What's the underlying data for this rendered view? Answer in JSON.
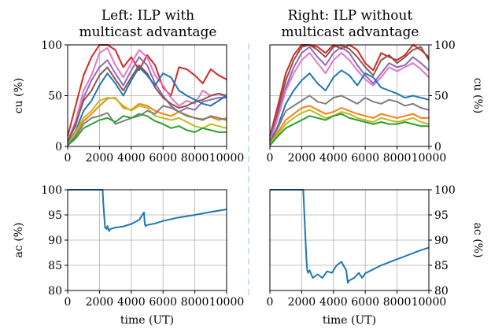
{
  "titles": {
    "left": [
      "Left: ILP with",
      "multicast advantage"
    ],
    "right": [
      "Right: ILP without",
      "multicast advantage"
    ]
  },
  "colors": {
    "separator": "#add8e6",
    "series": [
      "#1f77b4",
      "#d62728",
      "#9467bd",
      "#8c564b",
      "#e377c2",
      "#7f7f7f",
      "#ff7f0e",
      "#2ca02c",
      "#bcbd22"
    ]
  },
  "chart_data": [
    {
      "id": "cu-left",
      "type": "line",
      "ylabel": "cu (%)",
      "xlabel": "",
      "xlim": [
        0,
        10000
      ],
      "ylim": [
        0,
        100
      ],
      "xticks": [
        0,
        2000,
        4000,
        6000,
        8000,
        10000
      ],
      "yticks": [
        0,
        50,
        100
      ],
      "grid": true,
      "series": [
        {
          "color": "#d62728",
          "x": [
            0,
            500,
            1000,
            1500,
            2000,
            2500,
            3000,
            3500,
            4000,
            4500,
            5000,
            5500,
            6000,
            6500,
            7000,
            7500,
            8000,
            8500,
            9000,
            9500,
            10000
          ],
          "y": [
            10,
            40,
            70,
            88,
            100,
            100,
            95,
            78,
            88,
            75,
            90,
            80,
            58,
            50,
            78,
            76,
            70,
            62,
            76,
            70,
            66
          ]
        },
        {
          "color": "#e377c2",
          "x": [
            0,
            500,
            1000,
            1500,
            2000,
            2500,
            3000,
            3500,
            4000,
            4500,
            5000,
            5500,
            6000,
            6500,
            7000,
            7500,
            8000,
            8500,
            9000,
            9500,
            10000
          ],
          "y": [
            5,
            25,
            55,
            70,
            92,
            97,
            80,
            68,
            82,
            95,
            88,
            70,
            60,
            48,
            40,
            45,
            42,
            55,
            50,
            52,
            48
          ]
        },
        {
          "color": "#9467bd",
          "x": [
            0,
            500,
            1000,
            1500,
            2000,
            2500,
            3000,
            3500,
            4000,
            4500,
            5000,
            5500,
            6000,
            6500,
            7000,
            7500,
            8000,
            8500,
            9000,
            9500,
            10000
          ],
          "y": [
            5,
            20,
            48,
            65,
            78,
            85,
            72,
            60,
            75,
            88,
            80,
            62,
            50,
            40,
            34,
            38,
            36,
            44,
            46,
            48,
            48
          ]
        },
        {
          "color": "#8c564b",
          "x": [
            0,
            500,
            1000,
            1500,
            2000,
            2500,
            3000,
            3500,
            4000,
            4500,
            5000,
            5500,
            6000,
            6500,
            7000,
            7500,
            8000,
            8500,
            9000,
            9500,
            10000
          ],
          "y": [
            5,
            22,
            45,
            55,
            70,
            78,
            66,
            55,
            68,
            80,
            72,
            58,
            48,
            42,
            38,
            40,
            44,
            46,
            50,
            52,
            50
          ]
        },
        {
          "color": "#1f77b4",
          "x": [
            0,
            500,
            1000,
            1500,
            2000,
            2500,
            3000,
            3500,
            4000,
            4500,
            5000,
            5500,
            6000,
            6500,
            7000,
            7500,
            8000,
            8500,
            9000,
            9500,
            10000
          ],
          "y": [
            3,
            15,
            35,
            45,
            60,
            72,
            62,
            50,
            65,
            78,
            70,
            60,
            72,
            68,
            55,
            50,
            46,
            42,
            40,
            45,
            50
          ]
        },
        {
          "color": "#ff7f0e",
          "x": [
            0,
            500,
            1000,
            1500,
            2000,
            2500,
            3000,
            3500,
            4000,
            4500,
            5000,
            5500,
            6000,
            6500,
            7000,
            7500,
            8000,
            8500,
            9000,
            9500,
            10000
          ],
          "y": [
            2,
            12,
            25,
            32,
            40,
            47,
            48,
            38,
            36,
            42,
            40,
            35,
            32,
            30,
            34,
            31,
            28,
            27,
            29,
            26,
            28
          ]
        },
        {
          "color": "#bcbd22",
          "x": [
            0,
            500,
            1000,
            1500,
            2000,
            2500,
            3000,
            3500,
            4000,
            4500,
            5000,
            5500,
            6000,
            6500,
            7000,
            7500,
            8000,
            8500,
            9000,
            9500,
            10000
          ],
          "y": [
            2,
            14,
            28,
            35,
            45,
            48,
            47,
            40,
            35,
            40,
            38,
            30,
            28,
            26,
            28,
            24,
            20,
            18,
            22,
            20,
            18
          ]
        },
        {
          "color": "#7f7f7f",
          "x": [
            0,
            500,
            1000,
            1500,
            2000,
            2500,
            3000,
            3500,
            4000,
            4500,
            5000,
            5500,
            6000,
            6500,
            7000,
            7500,
            8000,
            8500,
            9000,
            9500,
            10000
          ],
          "y": [
            2,
            10,
            22,
            28,
            30,
            33,
            22,
            25,
            28,
            30,
            35,
            32,
            40,
            38,
            34,
            30,
            28,
            26,
            30,
            28,
            26
          ]
        },
        {
          "color": "#2ca02c",
          "x": [
            0,
            500,
            1000,
            1500,
            2000,
            2500,
            3000,
            3500,
            4000,
            4500,
            5000,
            5500,
            6000,
            6500,
            7000,
            7500,
            8000,
            8500,
            9000,
            9500,
            10000
          ],
          "y": [
            1,
            8,
            18,
            22,
            26,
            28,
            24,
            30,
            28,
            32,
            30,
            25,
            22,
            18,
            20,
            16,
            14,
            18,
            16,
            14,
            14
          ]
        }
      ]
    },
    {
      "id": "cu-right",
      "type": "line",
      "ylabel": "cu (%)",
      "xlabel": "",
      "xlim": [
        0,
        10000
      ],
      "ylim": [
        0,
        100
      ],
      "xticks": [
        0,
        2000,
        4000,
        6000,
        8000,
        10000
      ],
      "yticks": [
        0,
        50,
        100
      ],
      "grid": true,
      "series": [
        {
          "color": "#d62728",
          "x": [
            0,
            500,
            1000,
            1500,
            2000,
            2500,
            3000,
            3500,
            4000,
            4500,
            5000,
            5500,
            6000,
            6500,
            7000,
            7500,
            8000,
            8500,
            9000,
            9500,
            10000
          ],
          "y": [
            10,
            40,
            72,
            90,
            100,
            100,
            98,
            92,
            100,
            96,
            100,
            95,
            82,
            75,
            92,
            88,
            85,
            90,
            100,
            95,
            88
          ]
        },
        {
          "color": "#8c564b",
          "x": [
            0,
            500,
            1000,
            1500,
            2000,
            2500,
            3000,
            3500,
            4000,
            4500,
            5000,
            5500,
            6000,
            6500,
            7000,
            7500,
            8000,
            8500,
            9000,
            9500,
            10000
          ],
          "y": [
            8,
            35,
            65,
            85,
            98,
            100,
            95,
            88,
            98,
            100,
            96,
            88,
            78,
            70,
            85,
            90,
            82,
            88,
            95,
            98,
            85
          ]
        },
        {
          "color": "#9467bd",
          "x": [
            0,
            500,
            1000,
            1500,
            2000,
            2500,
            3000,
            3500,
            4000,
            4500,
            5000,
            5500,
            6000,
            6500,
            7000,
            7500,
            8000,
            8500,
            9000,
            9500,
            10000
          ],
          "y": [
            6,
            30,
            58,
            78,
            92,
            98,
            88,
            80,
            92,
            98,
            92,
            80,
            70,
            62,
            72,
            82,
            78,
            80,
            88,
            82,
            75
          ]
        },
        {
          "color": "#e377c2",
          "x": [
            0,
            500,
            1000,
            1500,
            2000,
            2500,
            3000,
            3500,
            4000,
            4500,
            5000,
            5500,
            6000,
            6500,
            7000,
            7500,
            8000,
            8500,
            9000,
            9500,
            10000
          ],
          "y": [
            5,
            28,
            55,
            72,
            85,
            92,
            82,
            72,
            85,
            92,
            85,
            75,
            66,
            60,
            68,
            78,
            74,
            78,
            82,
            76,
            68
          ]
        },
        {
          "color": "#1f77b4",
          "x": [
            0,
            500,
            1000,
            1500,
            2000,
            2500,
            3000,
            3500,
            4000,
            4500,
            5000,
            5500,
            6000,
            6500,
            7000,
            7500,
            8000,
            8500,
            9000,
            9500,
            10000
          ],
          "y": [
            4,
            20,
            42,
            55,
            65,
            72,
            62,
            55,
            68,
            75,
            70,
            60,
            72,
            68,
            58,
            55,
            52,
            48,
            50,
            48,
            46
          ]
        },
        {
          "color": "#7f7f7f",
          "x": [
            0,
            500,
            1000,
            1500,
            2000,
            2500,
            3000,
            3500,
            4000,
            4500,
            5000,
            5500,
            6000,
            6500,
            7000,
            7500,
            8000,
            8500,
            9000,
            9500,
            10000
          ],
          "y": [
            3,
            18,
            35,
            40,
            45,
            50,
            44,
            42,
            48,
            50,
            46,
            42,
            48,
            44,
            42,
            46,
            44,
            40,
            42,
            38,
            36
          ]
        },
        {
          "color": "#ff7f0e",
          "x": [
            0,
            500,
            1000,
            1500,
            2000,
            2500,
            3000,
            3500,
            4000,
            4500,
            5000,
            5500,
            6000,
            6500,
            7000,
            7500,
            8000,
            8500,
            9000,
            9500,
            10000
          ],
          "y": [
            2,
            14,
            26,
            32,
            38,
            40,
            36,
            32,
            34,
            38,
            35,
            32,
            30,
            28,
            32,
            30,
            28,
            30,
            32,
            28,
            28
          ]
        },
        {
          "color": "#bcbd22",
          "x": [
            0,
            500,
            1000,
            1500,
            2000,
            2500,
            3000,
            3500,
            4000,
            4500,
            5000,
            5500,
            6000,
            6500,
            7000,
            7500,
            8000,
            8500,
            9000,
            9500,
            10000
          ],
          "y": [
            2,
            12,
            22,
            28,
            33,
            36,
            32,
            28,
            30,
            34,
            32,
            28,
            26,
            24,
            28,
            26,
            24,
            26,
            28,
            24,
            22
          ]
        },
        {
          "color": "#2ca02c",
          "x": [
            0,
            500,
            1000,
            1500,
            2000,
            2500,
            3000,
            3500,
            4000,
            4500,
            5000,
            5500,
            6000,
            6500,
            7000,
            7500,
            8000,
            8500,
            9000,
            9500,
            10000
          ],
          "y": [
            1,
            10,
            18,
            22,
            26,
            30,
            28,
            26,
            30,
            32,
            28,
            26,
            24,
            22,
            24,
            22,
            22,
            24,
            22,
            20,
            20
          ]
        }
      ]
    },
    {
      "id": "ac-left",
      "type": "line",
      "ylabel": "ac (%)",
      "xlabel": "time (UT)",
      "xlim": [
        0,
        10000
      ],
      "ylim": [
        80,
        100
      ],
      "xticks": [
        0,
        2000,
        4000,
        6000,
        8000,
        10000
      ],
      "yticks": [
        80,
        85,
        90,
        95,
        100
      ],
      "grid": true,
      "series": [
        {
          "color": "#1f77b4",
          "x": [
            0,
            2200,
            2250,
            2350,
            2450,
            2500,
            2600,
            2700,
            3000,
            3500,
            4000,
            4500,
            4800,
            4850,
            4900,
            5000,
            5500,
            6000,
            7000,
            8000,
            9000,
            10000
          ],
          "y": [
            100,
            100,
            97,
            92.5,
            92.2,
            92.8,
            91.8,
            92.2,
            92.5,
            92.7,
            93.2,
            94,
            95.5,
            93.2,
            92.8,
            93.0,
            93.3,
            93.8,
            94.5,
            95,
            95.6,
            96.1
          ]
        }
      ]
    },
    {
      "id": "ac-right",
      "type": "line",
      "ylabel": "ac (%)",
      "xlabel": "time (UT)",
      "xlim": [
        0,
        10000
      ],
      "ylim": [
        80,
        100
      ],
      "xticks": [
        0,
        2000,
        4000,
        6000,
        8000,
        10000
      ],
      "yticks": [
        80,
        85,
        90,
        95,
        100
      ],
      "grid": true,
      "series": [
        {
          "color": "#1f77b4",
          "x": [
            0,
            2100,
            2200,
            2300,
            2350,
            2400,
            2500,
            2700,
            3000,
            3300,
            3600,
            3900,
            4200,
            4500,
            4800,
            4900,
            5000,
            5300,
            5600,
            5800,
            6000,
            6500,
            7000,
            7500,
            8000,
            8500,
            9000,
            9500,
            10000
          ],
          "y": [
            100,
            100,
            93,
            86,
            84,
            83.5,
            84,
            82.5,
            83.2,
            82.5,
            83.8,
            83.5,
            85,
            85.7,
            84,
            81.5,
            82,
            82.5,
            83.5,
            82.5,
            83.4,
            84.2,
            85,
            85.6,
            86.2,
            86.8,
            87.4,
            88,
            88.5
          ]
        }
      ]
    }
  ]
}
